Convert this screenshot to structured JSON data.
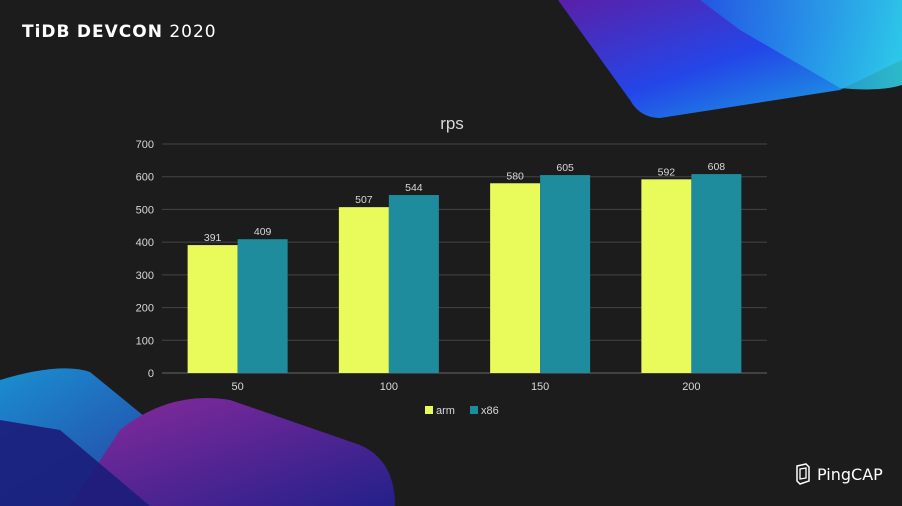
{
  "slide": {
    "event_prefix": "TiDB",
    "event_name": "DEVCON",
    "event_year": "2020",
    "logo_text": "PingCAP"
  },
  "colors": {
    "background": "#1c1c1c",
    "arm": "#e8fb5a",
    "x86": "#1e8c9c",
    "grid": "#444444",
    "text": "#d8d8d8"
  },
  "chart_data": {
    "type": "bar",
    "title": "rps",
    "categories": [
      "50",
      "100",
      "150",
      "200"
    ],
    "series": [
      {
        "name": "arm",
        "values": [
          391,
          507,
          580,
          592
        ]
      },
      {
        "name": "x86",
        "values": [
          409,
          544,
          605,
          608
        ]
      }
    ],
    "ylim": [
      0,
      700
    ],
    "yticks": [
      0,
      100,
      200,
      300,
      400,
      500,
      600,
      700
    ],
    "xlabel": "",
    "ylabel": "",
    "grid": true,
    "legend": "bottom"
  }
}
